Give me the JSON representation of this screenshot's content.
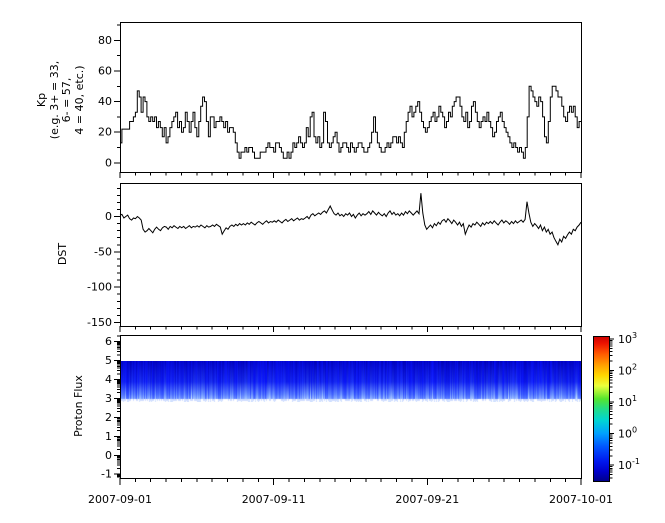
{
  "figure": {
    "background": "#ffffff",
    "line_color": "#000000",
    "frame_color": "#000000"
  },
  "axes": {
    "x": {
      "labels": [
        "2007-09-01",
        "2007-09-11",
        "2007-09-21",
        "2007-10-01"
      ],
      "major_days": [
        0,
        10,
        20,
        30
      ],
      "minor_step_days": 1,
      "span_days": 30
    },
    "kp": {
      "label_lines": [
        "Kp",
        "(e.g. 3+ = 33,",
        "6- = 57,",
        "4 = 40, etc.)"
      ],
      "ticks": [
        0,
        20,
        40,
        60,
        80
      ],
      "minor_step": 10,
      "lim": [
        -6,
        92
      ]
    },
    "dst": {
      "label": "DST",
      "ticks": [
        0,
        -50,
        -100,
        -150
      ],
      "minor_step": 10,
      "lim": [
        -155,
        47.5
      ]
    },
    "proton": {
      "label": "Proton Flux",
      "ticks": [
        -1,
        0,
        1,
        2,
        3,
        4,
        5,
        6
      ],
      "log_minors": true,
      "lim": [
        -1.2,
        6.35
      ]
    }
  },
  "colorbar": {
    "scale": "log",
    "log_range": [
      -1.5,
      3.1
    ],
    "tick_labels": [
      {
        "base": "10",
        "exp": "3"
      },
      {
        "base": "10",
        "exp": "2"
      },
      {
        "base": "10",
        "exp": "1"
      },
      {
        "base": "10",
        "exp": "0"
      },
      {
        "base": "10",
        "exp": "-1"
      }
    ],
    "exponents": [
      3,
      2,
      1,
      0,
      -1
    ],
    "gradient_stops": [
      [
        0.0,
        "#cc0000"
      ],
      [
        0.05,
        "#ee1500"
      ],
      [
        0.12,
        "#ff5a00"
      ],
      [
        0.2,
        "#ffa200"
      ],
      [
        0.27,
        "#ffd800"
      ],
      [
        0.34,
        "#eaff3c"
      ],
      [
        0.43,
        "#55e52e"
      ],
      [
        0.5,
        "#22dd88"
      ],
      [
        0.58,
        "#00d4d4"
      ],
      [
        0.67,
        "#009fff"
      ],
      [
        0.76,
        "#0055ff"
      ],
      [
        0.86,
        "#0018ee"
      ],
      [
        0.93,
        "#0000cc"
      ],
      [
        1.0,
        "#000088"
      ]
    ]
  },
  "chart_data": [
    {
      "type": "line",
      "name": "Kp",
      "draw_style": "steps",
      "ylabel": "Kp (e.g. 3+ = 33, 6- = 57, 4 = 40, etc.)",
      "x_start": "2007-09-01",
      "x_end": "2007-10-01",
      "x_step_hours": 3,
      "ylim": [
        -6,
        92
      ],
      "yticks": [
        0,
        20,
        40,
        60,
        80
      ],
      "values": [
        13,
        22,
        22,
        22,
        22,
        27,
        27,
        30,
        33,
        47,
        43,
        33,
        43,
        40,
        30,
        27,
        30,
        27,
        30,
        23,
        27,
        23,
        17,
        23,
        13,
        17,
        23,
        27,
        30,
        33,
        23,
        27,
        20,
        23,
        33,
        27,
        20,
        27,
        33,
        23,
        17,
        27,
        37,
        43,
        40,
        27,
        17,
        30,
        30,
        23,
        27,
        27,
        30,
        27,
        23,
        27,
        20,
        23,
        23,
        20,
        13,
        7,
        3,
        7,
        7,
        10,
        7,
        10,
        10,
        7,
        3,
        3,
        3,
        7,
        7,
        7,
        10,
        13,
        10,
        10,
        7,
        13,
        13,
        10,
        7,
        3,
        3,
        7,
        3,
        7,
        13,
        10,
        13,
        17,
        13,
        10,
        13,
        23,
        17,
        30,
        33,
        17,
        13,
        17,
        10,
        13,
        33,
        27,
        13,
        10,
        13,
        17,
        20,
        13,
        7,
        10,
        13,
        13,
        10,
        7,
        13,
        10,
        7,
        10,
        13,
        13,
        10,
        7,
        7,
        10,
        13,
        20,
        30,
        20,
        13,
        10,
        7,
        7,
        10,
        13,
        10,
        13,
        17,
        17,
        13,
        17,
        13,
        10,
        20,
        27,
        33,
        37,
        30,
        33,
        37,
        40,
        33,
        27,
        23,
        20,
        23,
        27,
        30,
        33,
        27,
        30,
        37,
        33,
        30,
        23,
        27,
        33,
        30,
        37,
        40,
        43,
        43,
        37,
        30,
        27,
        33,
        23,
        27,
        37,
        40,
        33,
        27,
        23,
        27,
        30,
        27,
        33,
        27,
        23,
        17,
        20,
        27,
        30,
        33,
        27,
        23,
        20,
        17,
        13,
        10,
        13,
        10,
        7,
        10,
        7,
        3,
        10,
        30,
        50,
        47,
        43,
        40,
        37,
        43,
        40,
        30,
        17,
        13,
        27,
        43,
        50,
        50,
        47,
        43,
        43,
        37,
        30,
        27,
        33,
        37,
        33,
        37,
        30,
        23,
        27
      ]
    },
    {
      "type": "line",
      "name": "DST",
      "draw_style": "linear",
      "ylabel": "DST",
      "x_start": "2007-09-01",
      "x_end": "2007-10-01",
      "x_step_hours": 3,
      "ylim": [
        -155,
        47.5
      ],
      "yticks": [
        0,
        -50,
        -100,
        -150
      ],
      "values": [
        2,
        3,
        -2,
        0,
        2,
        -3,
        -5,
        -2,
        -3,
        0,
        -2,
        -5,
        -18,
        -22,
        -20,
        -17,
        -20,
        -23,
        -18,
        -15,
        -18,
        -20,
        -16,
        -14,
        -15,
        -18,
        -14,
        -16,
        -13,
        -15,
        -17,
        -14,
        -16,
        -14,
        -17,
        -15,
        -13,
        -16,
        -14,
        -15,
        -13,
        -15,
        -12,
        -14,
        -16,
        -13,
        -15,
        -14,
        -12,
        -14,
        -11,
        -13,
        -15,
        -25,
        -20,
        -16,
        -18,
        -14,
        -12,
        -14,
        -11,
        -13,
        -10,
        -12,
        -10,
        -12,
        -9,
        -11,
        -8,
        -10,
        -12,
        -9,
        -7,
        -9,
        -11,
        -8,
        -6,
        -9,
        -7,
        -8,
        -6,
        -8,
        -5,
        -7,
        -9,
        -6,
        -4,
        -7,
        -5,
        -3,
        -6,
        -4,
        -2,
        -5,
        -3,
        -4,
        -2,
        0,
        -3,
        2,
        4,
        1,
        3,
        5,
        3,
        6,
        8,
        5,
        10,
        15,
        9,
        4,
        2,
        5,
        1,
        3,
        0,
        4,
        2,
        5,
        0,
        3,
        -2,
        2,
        5,
        1,
        4,
        2,
        4,
        7,
        3,
        8,
        5,
        2,
        6,
        3,
        1,
        4,
        0,
        5,
        8,
        3,
        6,
        2,
        4,
        1,
        5,
        2,
        7,
        4,
        8,
        5,
        2,
        5,
        8,
        4,
        33,
        5,
        -12,
        -18,
        -15,
        -12,
        -16,
        -10,
        -13,
        -8,
        -11,
        -6,
        -4,
        -8,
        -3,
        -6,
        -10,
        -5,
        -8,
        -12,
        -8,
        -14,
        -10,
        -25,
        -18,
        -12,
        -15,
        -10,
        -12,
        -8,
        -11,
        -14,
        -9,
        -12,
        -8,
        -10,
        -7,
        -10,
        -6,
        -9,
        -12,
        -8,
        -5,
        -9,
        -6,
        -8,
        -11,
        -7,
        -10,
        -6,
        -9,
        -7,
        -5,
        -8,
        -4,
        21,
        5,
        -8,
        -14,
        -10,
        -13,
        -17,
        -12,
        -20,
        -15,
        -22,
        -18,
        -25,
        -22,
        -30,
        -35,
        -40,
        -32,
        -36,
        -28,
        -31,
        -26,
        -22,
        -25,
        -18,
        -20,
        -15,
        -12,
        -8
      ]
    },
    {
      "type": "heatmap",
      "name": "Proton Flux",
      "ylabel": "Proton Flux",
      "x_start": "2007-09-01",
      "x_end": "2007-10-01",
      "y_band": [
        3,
        5
      ],
      "colormap": "jet",
      "value_scale": "log",
      "colorbar_range_log10": [
        -1.5,
        3.1
      ],
      "band_flux_log10_range": [
        -1.5,
        -0.7
      ],
      "appearance": {
        "band_top_color": "#0000c0",
        "band_mid_color": "#0a1ee6",
        "band_bottom_color": "#5580ff"
      }
    }
  ]
}
